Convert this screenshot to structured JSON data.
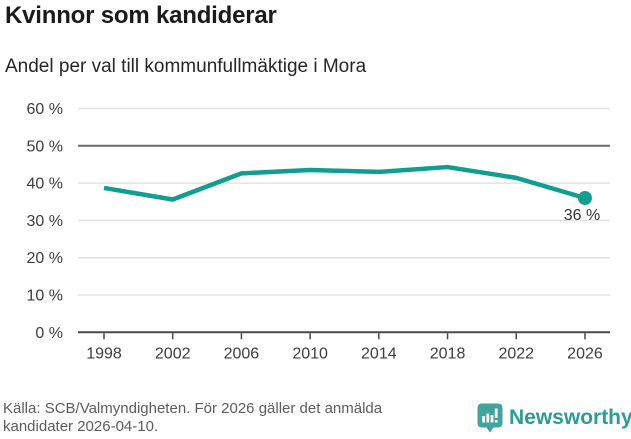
{
  "header": {
    "title": "Kvinnor som kandiderar",
    "subtitle": "Andel per val till kommunfullmäktige i Mora"
  },
  "chart_data": {
    "type": "line",
    "title": "Kvinnor som kandiderar",
    "subtitle": "Andel per val till kommunfullmäktige i Mora",
    "x": [
      1998,
      2002,
      2006,
      2010,
      2014,
      2018,
      2022,
      2026
    ],
    "x_tick_labels": [
      "1998",
      "2002",
      "2006",
      "2010",
      "2014",
      "2018",
      "2022",
      "2026"
    ],
    "series": [
      {
        "values": [
          38.7,
          35.6,
          42.6,
          43.5,
          43.0,
          44.3,
          41.4,
          36.0
        ]
      }
    ],
    "y_ticks": [
      0,
      10,
      20,
      30,
      40,
      50,
      60
    ],
    "y_tick_labels": [
      "0 %",
      "10 %",
      "20 %",
      "30 %",
      "40 %",
      "50 %",
      "60 %"
    ],
    "ylim": [
      0,
      60
    ],
    "xlabel": "",
    "ylabel": "",
    "grid": "horizontal",
    "reference_line_value": 50,
    "legend": "none",
    "end_label": "36 %",
    "last_point_marker": true
  },
  "colors": {
    "line": "#0f9e90",
    "gridline": "#e3e3e3",
    "reference_line": "#6b6b6b",
    "axis": "#4a4a4a",
    "tick_label": "#3d3d3d",
    "end_label": "#333333",
    "brand_teal": "#2a9d97"
  },
  "footer": {
    "source_lines": [
      "Källa: SCB/Valmyndigheten. För 2026 gäller det anmälda",
      "kandidater 2026-04-10."
    ],
    "logo_text": "Newsworthy"
  }
}
